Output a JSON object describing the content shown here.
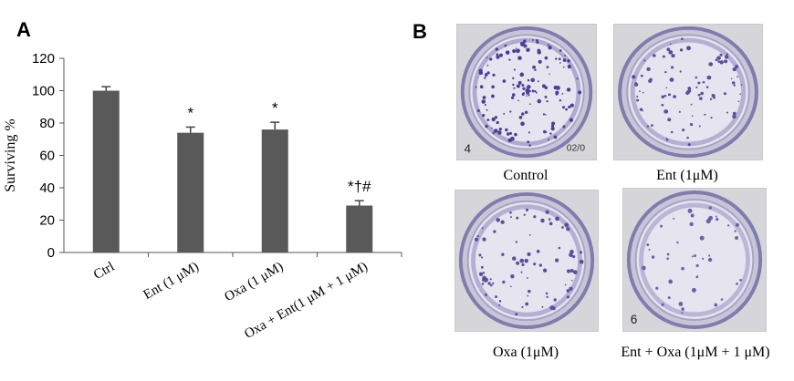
{
  "panel_a": {
    "letter": "A",
    "chart_data": {
      "type": "bar",
      "categories": [
        "Ctrl",
        "Ent (1 μM)",
        "Oxa (1 μM)",
        "Oxa + Ent(1 μM + 1 μM)"
      ],
      "values": [
        100,
        74,
        76,
        29
      ],
      "errors": [
        2.5,
        3.5,
        4.5,
        3
      ],
      "annotations": [
        "",
        "*",
        "*",
        "*†#"
      ],
      "ylabel": "Surviving %",
      "xlabel": "",
      "title": "",
      "ylim": [
        0,
        120
      ],
      "yticks": [
        0,
        20,
        40,
        60,
        80,
        100,
        120
      ],
      "grid": false,
      "bar_color": "#595959"
    }
  },
  "panel_b": {
    "letter": "B",
    "photos": [
      {
        "caption": "Control",
        "marker_text": "4",
        "corner_text": "02/0",
        "stain_color": "#4a3f96",
        "density": "high"
      },
      {
        "caption": "Ent (1μM)",
        "marker_text": "",
        "corner_text": "",
        "stain_color": "#5a4f9e",
        "density": "medium"
      },
      {
        "caption": "Oxa (1μM)",
        "marker_text": "",
        "corner_text": "",
        "stain_color": "#5a4f9e",
        "density": "medium"
      },
      {
        "caption": "Ent + Oxa (1μM + 1 μM)",
        "marker_text": "6",
        "corner_text": "",
        "stain_color": "#6a62a8",
        "density": "low"
      }
    ]
  }
}
